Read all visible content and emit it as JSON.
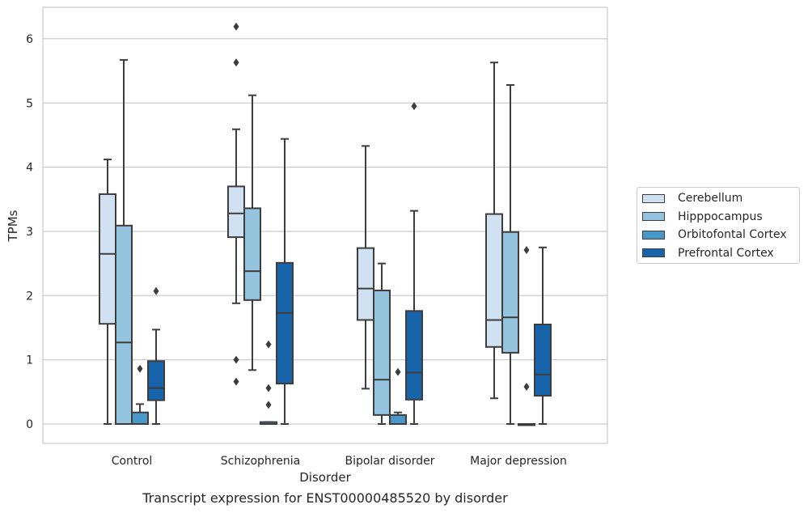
{
  "chart_data": {
    "type": "box",
    "title": "Transcript expression for ENST00000485520 by disorder",
    "xlabel": "Disorder",
    "ylabel": "TPMs",
    "ylim": [
      -0.3,
      6.5
    ],
    "yticks": [
      0,
      1,
      2,
      3,
      4,
      5,
      6
    ],
    "grid": "horizontal",
    "legend_position": "right",
    "categories": [
      "Control",
      "Schizophrenia",
      "Bipolar disorder",
      "Major depression"
    ],
    "series": [
      {
        "name": "Cerebellum",
        "color": "#d0e1f2",
        "boxes": [
          {
            "whislo": 0.0,
            "q1": 1.56,
            "med": 2.65,
            "q3": 3.58,
            "whishi": 4.12,
            "fliers": []
          },
          {
            "whislo": 1.88,
            "q1": 2.91,
            "med": 3.28,
            "q3": 3.7,
            "whishi": 4.59,
            "fliers": [
              0.66,
              1.0,
              5.63,
              6.19
            ]
          },
          {
            "whislo": 0.55,
            "q1": 1.62,
            "med": 2.11,
            "q3": 2.74,
            "whishi": 4.33,
            "fliers": []
          },
          {
            "whislo": 0.4,
            "q1": 1.2,
            "med": 1.62,
            "q3": 3.27,
            "whishi": 5.63,
            "fliers": []
          }
        ]
      },
      {
        "name": "Hipppocampus",
        "color": "#94c4df",
        "boxes": [
          {
            "whislo": 0.0,
            "q1": 0.0,
            "med": 1.27,
            "q3": 3.09,
            "whishi": 5.67,
            "fliers": []
          },
          {
            "whislo": 0.84,
            "q1": 1.93,
            "med": 2.38,
            "q3": 3.36,
            "whishi": 5.12,
            "fliers": []
          },
          {
            "whislo": 0.0,
            "q1": 0.14,
            "med": 0.69,
            "q3": 2.08,
            "whishi": 2.5,
            "fliers": []
          },
          {
            "whislo": 0.0,
            "q1": 1.11,
            "med": 1.66,
            "q3": 2.99,
            "whishi": 5.28,
            "fliers": []
          }
        ]
      },
      {
        "name": "Orbitofontal Cortex",
        "color": "#4a98c9",
        "boxes": [
          {
            "whislo": 0.0,
            "q1": 0.0,
            "med": 0.0,
            "q3": 0.18,
            "whishi": 0.31,
            "fliers": [
              0.86
            ]
          },
          {
            "whislo": 0.0,
            "q1": 0.0,
            "med": 0.0,
            "q3": 0.03,
            "whishi": 0.03,
            "fliers": [
              0.3,
              0.56,
              1.24
            ]
          },
          {
            "whislo": 0.0,
            "q1": 0.0,
            "med": 0.0,
            "q3": 0.14,
            "whishi": 0.18,
            "fliers": [
              0.81
            ]
          },
          {
            "whislo": 0.0,
            "q1": 0.0,
            "med": 0.0,
            "q3": 0.0,
            "whishi": 0.0,
            "fliers": [
              0.58,
              2.71
            ]
          }
        ]
      },
      {
        "name": "Prefrontal Cortex",
        "color": "#1764ab",
        "boxes": [
          {
            "whislo": 0.0,
            "q1": 0.37,
            "med": 0.56,
            "q3": 0.98,
            "whishi": 1.47,
            "fliers": [
              2.07
            ]
          },
          {
            "whislo": 0.0,
            "q1": 0.63,
            "med": 1.73,
            "q3": 2.51,
            "whishi": 4.44,
            "fliers": []
          },
          {
            "whislo": 0.0,
            "q1": 0.38,
            "med": 0.8,
            "q3": 1.76,
            "whishi": 3.32,
            "fliers": [
              4.95
            ]
          },
          {
            "whislo": 0.0,
            "q1": 0.44,
            "med": 0.77,
            "q3": 1.55,
            "whishi": 2.75,
            "fliers": []
          }
        ]
      }
    ]
  }
}
